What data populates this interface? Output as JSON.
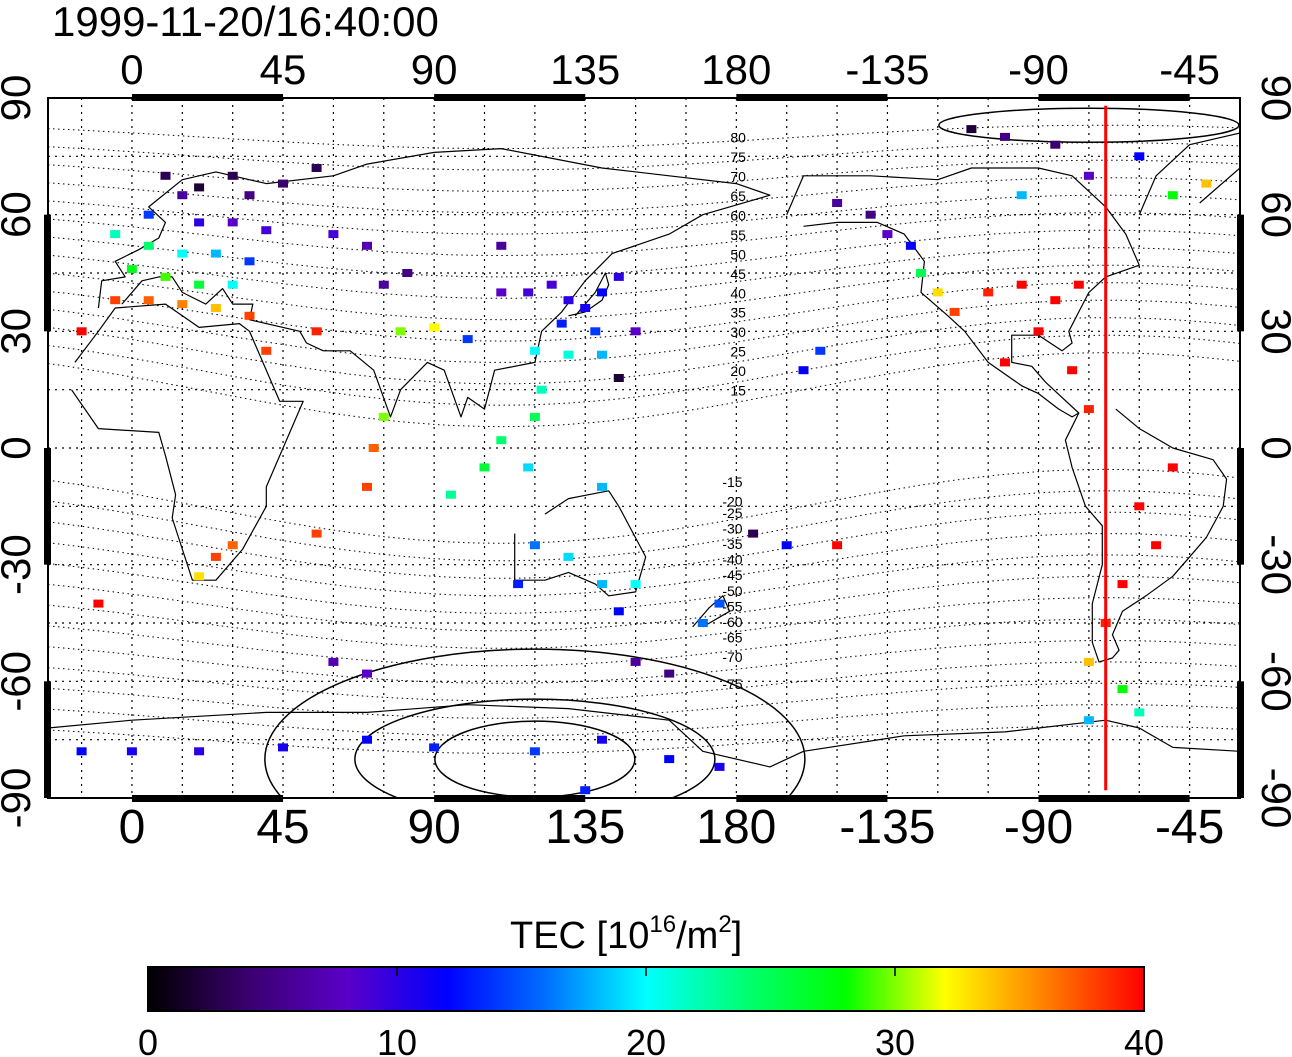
{
  "title": "1999-11-20/16:40:00",
  "map": {
    "lon_ticks": [
      "0",
      "45",
      "90",
      "135",
      "180",
      "-135",
      "-90",
      "-45"
    ],
    "lat_ticks": [
      "90",
      "60",
      "30",
      "0",
      "-30",
      "-60",
      "-90"
    ],
    "contour_labels_north": [
      "80",
      "75",
      "70",
      "65",
      "60",
      "55",
      "50",
      "45",
      "40",
      "35",
      "30",
      "25",
      "20",
      "15"
    ],
    "contour_labels_south": [
      "-15",
      "-20",
      "-25",
      "-30",
      "-35",
      "-40",
      "-45",
      "-50",
      "-55",
      "-60",
      "-65",
      "-70",
      "-75"
    ],
    "grid": true,
    "marker_line_longitude": -70,
    "marker_line_color": "#ff0000"
  },
  "colorbar": {
    "label_main": "TEC  [10",
    "label_sup1": "16",
    "label_mid": "/m",
    "label_sup2": "2",
    "label_end": "]",
    "ticks": [
      "0",
      "10",
      "20",
      "30",
      "40"
    ],
    "range": [
      0,
      40
    ],
    "colors": [
      "#000000",
      "#3a006e",
      "#5a00c8",
      "#0000ff",
      "#0070ff",
      "#00ffff",
      "#00ff70",
      "#00ff00",
      "#ffff00",
      "#ff8000",
      "#ff0000"
    ]
  },
  "chart_data": {
    "type": "scatter",
    "title": "1999-11-20/16:40:00",
    "xlabel": "",
    "ylabel": "",
    "value_label": "TEC [10^16/m^2]",
    "xlim": [
      -25,
      330
    ],
    "ylim": [
      -90,
      90
    ],
    "value_range": [
      0,
      40
    ],
    "points": [
      {
        "lon": 10,
        "lat": 70,
        "tec": 3
      },
      {
        "lon": 20,
        "lat": 67,
        "tec": 2
      },
      {
        "lon": 30,
        "lat": 70,
        "tec": 3
      },
      {
        "lon": 35,
        "lat": 65,
        "tec": 5
      },
      {
        "lon": 15,
        "lat": 65,
        "tec": 6
      },
      {
        "lon": 45,
        "lat": 68,
        "tec": 4
      },
      {
        "lon": 55,
        "lat": 72,
        "tec": 3
      },
      {
        "lon": 5,
        "lat": 60,
        "tec": 14
      },
      {
        "lon": 20,
        "lat": 58,
        "tec": 10
      },
      {
        "lon": 30,
        "lat": 58,
        "tec": 8
      },
      {
        "lon": 40,
        "lat": 56,
        "tec": 9
      },
      {
        "lon": -5,
        "lat": 55,
        "tec": 22
      },
      {
        "lon": 5,
        "lat": 52,
        "tec": 24
      },
      {
        "lon": 15,
        "lat": 50,
        "tec": 20
      },
      {
        "lon": 25,
        "lat": 50,
        "tec": 18
      },
      {
        "lon": 35,
        "lat": 48,
        "tec": 14
      },
      {
        "lon": 0,
        "lat": 46,
        "tec": 27
      },
      {
        "lon": 10,
        "lat": 44,
        "tec": 29
      },
      {
        "lon": 20,
        "lat": 42,
        "tec": 26
      },
      {
        "lon": 30,
        "lat": 42,
        "tec": 20
      },
      {
        "lon": -5,
        "lat": 38,
        "tec": 38
      },
      {
        "lon": 5,
        "lat": 38,
        "tec": 37
      },
      {
        "lon": 15,
        "lat": 37,
        "tec": 36
      },
      {
        "lon": 25,
        "lat": 36,
        "tec": 34
      },
      {
        "lon": 35,
        "lat": 34,
        "tec": 38
      },
      {
        "lon": -15,
        "lat": 30,
        "tec": 40
      },
      {
        "lon": 40,
        "lat": 25,
        "tec": 38
      },
      {
        "lon": 55,
        "lat": 30,
        "tec": 39
      },
      {
        "lon": 75,
        "lat": 42,
        "tec": 6
      },
      {
        "lon": 82,
        "lat": 45,
        "tec": 5
      },
      {
        "lon": 60,
        "lat": 55,
        "tec": 9
      },
      {
        "lon": 70,
        "lat": 52,
        "tec": 7
      },
      {
        "lon": 80,
        "lat": 30,
        "tec": 30
      },
      {
        "lon": 90,
        "lat": 31,
        "tec": 32
      },
      {
        "lon": 100,
        "lat": 28,
        "tec": 14
      },
      {
        "lon": 110,
        "lat": 52,
        "tec": 6
      },
      {
        "lon": 110,
        "lat": 40,
        "tec": 8
      },
      {
        "lon": 118,
        "lat": 40,
        "tec": 9
      },
      {
        "lon": 125,
        "lat": 42,
        "tec": 9
      },
      {
        "lon": 130,
        "lat": 38,
        "tec": 10
      },
      {
        "lon": 135,
        "lat": 36,
        "tec": 11
      },
      {
        "lon": 140,
        "lat": 40,
        "tec": 12
      },
      {
        "lon": 145,
        "lat": 44,
        "tec": 10
      },
      {
        "lon": 128,
        "lat": 32,
        "tec": 13
      },
      {
        "lon": 138,
        "lat": 30,
        "tec": 14
      },
      {
        "lon": 120,
        "lat": 25,
        "tec": 20
      },
      {
        "lon": 130,
        "lat": 24,
        "tec": 21
      },
      {
        "lon": 140,
        "lat": 24,
        "tec": 18
      },
      {
        "lon": 150,
        "lat": 30,
        "tec": 8
      },
      {
        "lon": 145,
        "lat": 18,
        "tec": 2
      },
      {
        "lon": 122,
        "lat": 15,
        "tec": 22
      },
      {
        "lon": 120,
        "lat": 8,
        "tec": 25
      },
      {
        "lon": 110,
        "lat": 2,
        "tec": 24
      },
      {
        "lon": 105,
        "lat": -5,
        "tec": 26
      },
      {
        "lon": 118,
        "lat": -5,
        "tec": 19
      },
      {
        "lon": 140,
        "lat": -10,
        "tec": 18
      },
      {
        "lon": 75,
        "lat": 8,
        "tec": 30
      },
      {
        "lon": 72,
        "lat": 0,
        "tec": 37
      },
      {
        "lon": 70,
        "lat": -10,
        "tec": 38
      },
      {
        "lon": 95,
        "lat": -12,
        "tec": 23
      },
      {
        "lon": 120,
        "lat": -25,
        "tec": 16
      },
      {
        "lon": 130,
        "lat": -28,
        "tec": 19
      },
      {
        "lon": 115,
        "lat": -35,
        "tec": 13
      },
      {
        "lon": 140,
        "lat": -35,
        "tec": 18
      },
      {
        "lon": 150,
        "lat": -35,
        "tec": 20
      },
      {
        "lon": 145,
        "lat": -42,
        "tec": 12
      },
      {
        "lon": 170,
        "lat": -45,
        "tec": 16
      },
      {
        "lon": 175,
        "lat": -40,
        "tec": 15
      },
      {
        "lon": 150,
        "lat": -55,
        "tec": 6
      },
      {
        "lon": 160,
        "lat": -58,
        "tec": 5
      },
      {
        "lon": 185,
        "lat": -22,
        "tec": 3
      },
      {
        "lon": 195,
        "lat": -25,
        "tec": 12
      },
      {
        "lon": 210,
        "lat": -25,
        "tec": 40
      },
      {
        "lon": 200,
        "lat": 20,
        "tec": 12
      },
      {
        "lon": 205,
        "lat": 25,
        "tec": 14
      },
      {
        "lon": 25,
        "lat": -28,
        "tec": 38
      },
      {
        "lon": 30,
        "lat": -25,
        "tec": 37
      },
      {
        "lon": 20,
        "lat": -33,
        "tec": 33
      },
      {
        "lon": -10,
        "lat": -40,
        "tec": 40
      },
      {
        "lon": 55,
        "lat": -22,
        "tec": 38
      },
      {
        "lon": 60,
        "lat": -55,
        "tec": 7
      },
      {
        "lon": 70,
        "lat": -58,
        "tec": 8
      },
      {
        "lon": -15,
        "lat": -78,
        "tec": 12
      },
      {
        "lon": 0,
        "lat": -78,
        "tec": 11
      },
      {
        "lon": 20,
        "lat": -78,
        "tec": 10
      },
      {
        "lon": 45,
        "lat": -77,
        "tec": 11
      },
      {
        "lon": 70,
        "lat": -75,
        "tec": 12
      },
      {
        "lon": 90,
        "lat": -77,
        "tec": 13
      },
      {
        "lon": 120,
        "lat": -78,
        "tec": 14
      },
      {
        "lon": 140,
        "lat": -75,
        "tec": 11
      },
      {
        "lon": 160,
        "lat": -80,
        "tec": 12
      },
      {
        "lon": 175,
        "lat": -82,
        "tec": 11
      },
      {
        "lon": 135,
        "lat": -88,
        "tec": 13
      },
      {
        "lon": 210,
        "lat": 63,
        "tec": 6
      },
      {
        "lon": 220,
        "lat": 60,
        "tec": 5
      },
      {
        "lon": 225,
        "lat": 55,
        "tec": 8
      },
      {
        "lon": 232,
        "lat": 52,
        "tec": 12
      },
      {
        "lon": 235,
        "lat": 45,
        "tec": 25
      },
      {
        "lon": 240,
        "lat": 40,
        "tec": 33
      },
      {
        "lon": 245,
        "lat": 35,
        "tec": 38
      },
      {
        "lon": 255,
        "lat": 40,
        "tec": 39
      },
      {
        "lon": 265,
        "lat": 42,
        "tec": 40
      },
      {
        "lon": 275,
        "lat": 38,
        "tec": 40
      },
      {
        "lon": 282,
        "lat": 42,
        "tec": 40
      },
      {
        "lon": 270,
        "lat": 30,
        "tec": 40
      },
      {
        "lon": 260,
        "lat": 22,
        "tec": 40
      },
      {
        "lon": 280,
        "lat": 20,
        "tec": 40
      },
      {
        "lon": 285,
        "lat": 10,
        "tec": 39
      },
      {
        "lon": 300,
        "lat": -15,
        "tec": 40
      },
      {
        "lon": 310,
        "lat": -5,
        "tec": 40
      },
      {
        "lon": 305,
        "lat": -25,
        "tec": 40
      },
      {
        "lon": 295,
        "lat": -35,
        "tec": 40
      },
      {
        "lon": 290,
        "lat": -45,
        "tec": 39
      },
      {
        "lon": 285,
        "lat": -55,
        "tec": 34
      },
      {
        "lon": 295,
        "lat": -62,
        "tec": 28
      },
      {
        "lon": 300,
        "lat": -68,
        "tec": 22
      },
      {
        "lon": 285,
        "lat": -70,
        "tec": 18
      },
      {
        "lon": 250,
        "lat": 82,
        "tec": 2
      },
      {
        "lon": 260,
        "lat": 80,
        "tec": 5
      },
      {
        "lon": 275,
        "lat": 78,
        "tec": 4
      },
      {
        "lon": 285,
        "lat": 70,
        "tec": 8
      },
      {
        "lon": 300,
        "lat": 75,
        "tec": 12
      },
      {
        "lon": 310,
        "lat": 65,
        "tec": 28
      },
      {
        "lon": 320,
        "lat": 68,
        "tec": 34
      },
      {
        "lon": 265,
        "lat": 65,
        "tec": 18
      }
    ]
  }
}
